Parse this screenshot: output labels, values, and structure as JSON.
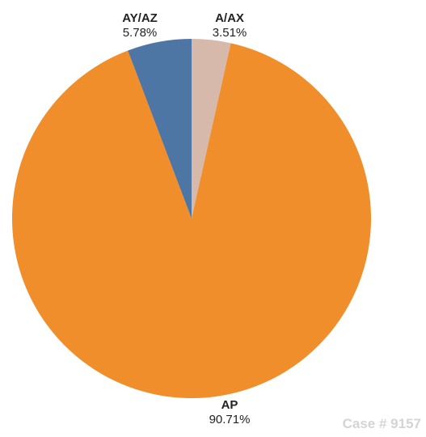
{
  "chart_data": {
    "type": "pie",
    "start_angle_deg": 0,
    "direction": "clockwise",
    "slices": [
      {
        "label": "A/AX",
        "percent_label": "3.51%",
        "value": 3.51,
        "color": "#d6b9ab"
      },
      {
        "label": "AP",
        "percent_label": "90.71%",
        "value": 90.71,
        "color": "#f18e2c"
      },
      {
        "label": "AY/AZ",
        "percent_label": "5.78%",
        "value": 5.78,
        "color": "#4e76a5"
      }
    ]
  },
  "watermark": "Case # 9157"
}
